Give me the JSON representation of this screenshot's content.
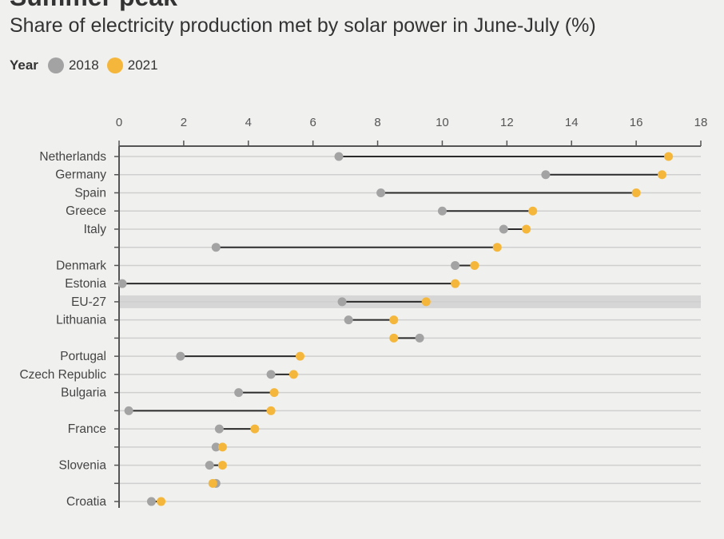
{
  "header": {
    "title": "Summer peak",
    "subtitle": "Share of electricity production met by solar power in June-July (%)"
  },
  "legend": {
    "title": "Year",
    "items": [
      {
        "label": "2018",
        "color": "#a3a3a3"
      },
      {
        "label": "2021",
        "color": "#f5b73b"
      }
    ]
  },
  "chart_data": {
    "type": "dumbbell",
    "title": "Summer peak",
    "subtitle": "Share of electricity production met by solar power in June-July (%)",
    "xlim": [
      0,
      18
    ],
    "xticks": [
      "0",
      "2",
      "4",
      "6",
      "8",
      "10",
      "12",
      "14",
      "16",
      "18"
    ],
    "grid": true,
    "legend_position": "top-left",
    "highlight_category": "EU-27",
    "series": [
      {
        "name": "2018",
        "color": "#a3a3a3"
      },
      {
        "name": "2021",
        "color": "#f5b73b"
      }
    ],
    "rows": [
      {
        "label": "Netherlands",
        "v2018": 6.8,
        "v2021": 17.0
      },
      {
        "label": "Germany",
        "v2018": 13.2,
        "v2021": 16.8
      },
      {
        "label": "Spain",
        "v2018": 8.1,
        "v2021": 16.0
      },
      {
        "label": "Greece",
        "v2018": 10.0,
        "v2021": 12.8
      },
      {
        "label": "Italy",
        "v2018": 11.9,
        "v2021": 12.6
      },
      {
        "label": "",
        "v2018": 3.0,
        "v2021": 11.7
      },
      {
        "label": "Denmark",
        "v2018": 10.4,
        "v2021": 11.0
      },
      {
        "label": "Estonia",
        "v2018": 0.1,
        "v2021": 10.4
      },
      {
        "label": "EU-27",
        "v2018": 6.9,
        "v2021": 9.5
      },
      {
        "label": "Lithuania",
        "v2018": 7.1,
        "v2021": 8.5
      },
      {
        "label": "",
        "v2018": 9.3,
        "v2021": 8.5
      },
      {
        "label": "Portugal",
        "v2018": 1.9,
        "v2021": 5.6
      },
      {
        "label": "Czech Republic",
        "v2018": 4.7,
        "v2021": 5.4
      },
      {
        "label": "Bulgaria",
        "v2018": 3.7,
        "v2021": 4.8
      },
      {
        "label": "",
        "v2018": 0.3,
        "v2021": 4.7
      },
      {
        "label": "France",
        "v2018": 3.1,
        "v2021": 4.2
      },
      {
        "label": "",
        "v2018": 3.0,
        "v2021": 3.2
      },
      {
        "label": "Slovenia",
        "v2018": 2.8,
        "v2021": 3.2
      },
      {
        "label": "",
        "v2018": 3.0,
        "v2021": 2.9
      },
      {
        "label": "Croatia",
        "v2018": 1.0,
        "v2021": 1.3
      }
    ]
  }
}
